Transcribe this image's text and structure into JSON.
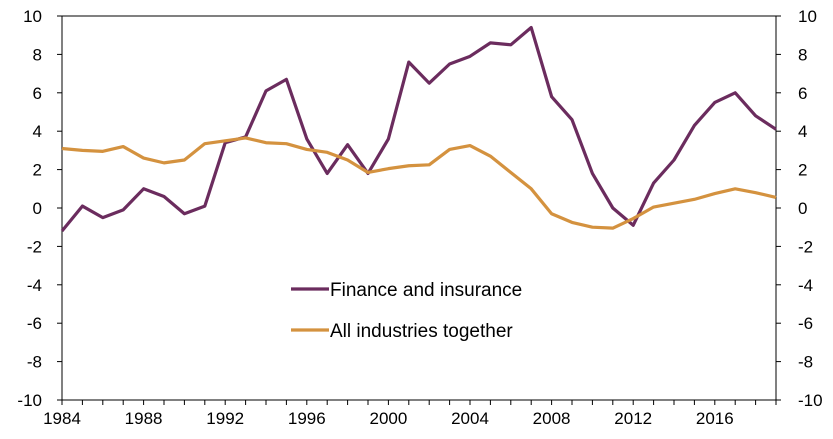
{
  "chart_data": {
    "type": "line",
    "title": "",
    "xlabel": "",
    "ylabel": "",
    "xlim": [
      1984,
      2019
    ],
    "ylim": [
      -10,
      10
    ],
    "x_ticks": [
      "1984",
      "1988",
      "1992",
      "1996",
      "2000",
      "2004",
      "2008",
      "2012",
      "2016"
    ],
    "x_tick_values": [
      1984,
      1988,
      1992,
      1996,
      2000,
      2004,
      2008,
      2012,
      2016
    ],
    "y_ticks": [
      "10",
      "8",
      "6",
      "4",
      "2",
      "0",
      "-2",
      "-4",
      "-6",
      "-8",
      "-10"
    ],
    "y_tick_values": [
      10,
      8,
      6,
      4,
      2,
      0,
      -2,
      -4,
      -6,
      -8,
      -10
    ],
    "grid": false,
    "legend_position": "center",
    "x": [
      1984,
      1985,
      1986,
      1987,
      1988,
      1989,
      1990,
      1991,
      1992,
      1993,
      1994,
      1995,
      1996,
      1997,
      1998,
      1999,
      2000,
      2001,
      2002,
      2003,
      2004,
      2005,
      2006,
      2007,
      2008,
      2009,
      2010,
      2011,
      2012,
      2013,
      2014,
      2015,
      2016,
      2017,
      2018,
      2019
    ],
    "series": [
      {
        "name": "Finance and insurance",
        "color": "#6b2c5e",
        "values": [
          -1.2,
          0.1,
          -0.5,
          -0.1,
          1.0,
          0.6,
          -0.3,
          0.1,
          3.4,
          3.7,
          6.1,
          6.7,
          3.6,
          1.8,
          3.3,
          1.8,
          3.6,
          7.6,
          6.5,
          7.5,
          7.9,
          8.6,
          8.5,
          9.4,
          5.8,
          4.6,
          1.8,
          0.0,
          -0.9,
          1.3,
          2.5,
          4.3,
          5.5,
          6.0,
          4.8,
          4.1
        ]
      },
      {
        "name": "All industries together",
        "color": "#d4923f",
        "values": [
          3.1,
          3.0,
          2.95,
          3.2,
          2.6,
          2.35,
          2.5,
          3.35,
          3.5,
          3.65,
          3.4,
          3.35,
          3.05,
          2.9,
          2.5,
          1.85,
          2.05,
          2.2,
          2.25,
          3.05,
          3.25,
          2.7,
          1.85,
          1.0,
          -0.3,
          -0.75,
          -1.0,
          -1.05,
          -0.55,
          0.05,
          0.25,
          0.45,
          0.75,
          1.0,
          0.8,
          0.55
        ]
      }
    ]
  }
}
